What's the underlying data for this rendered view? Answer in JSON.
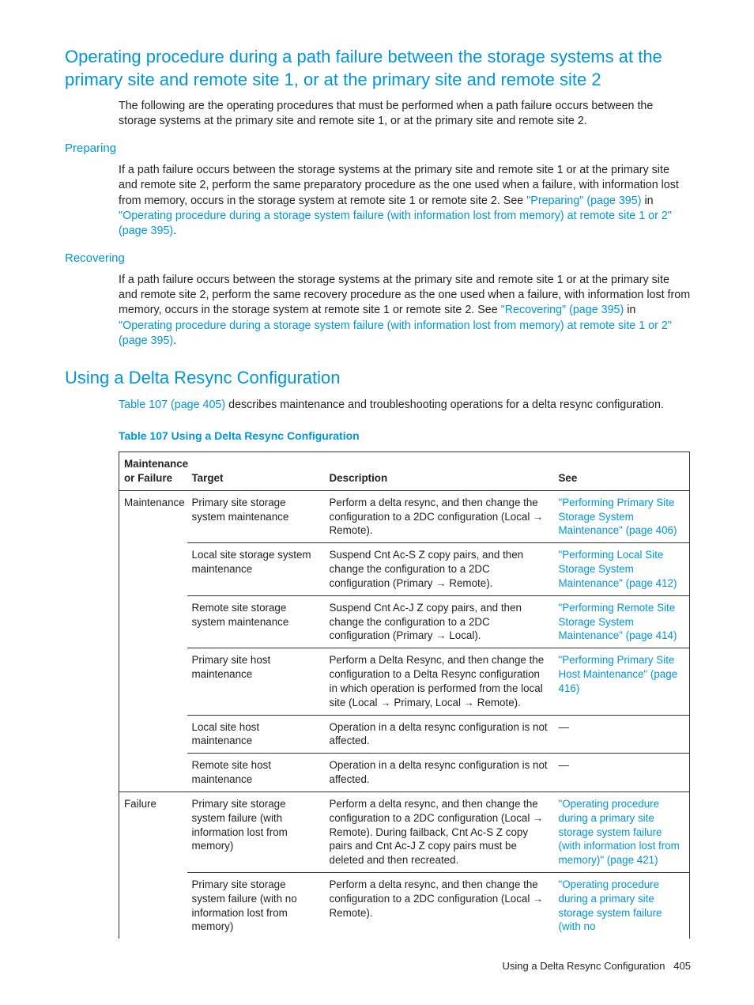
{
  "heading1": "Operating procedure during a path failure between the storage systems at the primary site and remote site 1, or at the primary site and remote site 2",
  "intro": "The following are the operating procedures that must be performed when a path failure occurs between the storage systems at the primary site and remote site 1, or at the primary site and remote site 2.",
  "preparing": {
    "title": "Preparing",
    "text_pre": "If a path failure occurs between the storage systems at the primary site and remote site 1 or at the primary site and remote site 2, perform the same preparatory procedure as the one used when a failure, with information lost from memory, occurs in the storage system at remote site 1 or remote site 2. See ",
    "link1": "\"Preparing\" (page 395)",
    "mid": " in ",
    "link2": "\"Operating procedure during a storage system failure (with information lost from memory) at remote site 1 or 2\" (page 395)",
    "after": "."
  },
  "recovering": {
    "title": "Recovering",
    "text_pre": "If a path failure occurs between the storage systems at the primary site and remote site 1 or at the primary site and remote site 2, perform the same recovery procedure as the one used when a failure, with information lost from memory, occurs in the storage system at remote site 1 or remote site 2. See ",
    "link1": "\"Recovering\" (page 395)",
    "mid": " in ",
    "link2": "\"Operating procedure during a storage system failure (with information lost from memory) at remote site 1 or 2\" (page 395)",
    "after": "."
  },
  "heading2": "Using a Delta Resync Configuration",
  "delta_intro_link": "Table 107 (page 405)",
  "delta_intro_post": " describes maintenance and troubleshooting operations for a delta resync configuration.",
  "table_caption": "Table 107 Using a Delta Resync Configuration",
  "columns": [
    "Maintenance or Failure",
    "Target",
    "Description",
    "See"
  ],
  "rows": [
    {
      "c0": "Maintenance",
      "c1": "Primary site storage system maintenance",
      "c2": "Perform a delta resync, and then change the configuration to a 2DC configuration (Local → Remote).",
      "c3": "\"Performing Primary Site Storage System Maintenance\" (page 406)",
      "link": true,
      "rs": 6
    },
    {
      "c0": "",
      "c1": "Local site storage system maintenance",
      "c2": "Suspend Cnt Ac-S Z copy pairs, and then change the configuration to a 2DC configuration (Primary → Remote).",
      "c3": "\"Performing Local Site Storage System Maintenance\" (page 412)",
      "link": true
    },
    {
      "c0": "",
      "c1": "Remote site storage system maintenance",
      "c2": "Suspend Cnt Ac-J Z copy pairs, and then change the configuration to a 2DC configuration (Primary → Local).",
      "c3": "\"Performing Remote Site Storage System Maintenance\" (page 414)",
      "link": true
    },
    {
      "c0": "",
      "c1": "Primary site host maintenance",
      "c2": "Perform a Delta Resync, and then change the configuration to a Delta Resync configuration in which operation is performed from the local site (Local → Primary, Local → Remote).",
      "c3": "\"Performing Primary Site Host Maintenance\" (page 416)",
      "link": true
    },
    {
      "c0": "",
      "c1": "Local site host maintenance",
      "c2": "Operation in a delta resync configuration is not affected.",
      "c3": "—",
      "link": false
    },
    {
      "c0": "",
      "c1": "Remote site host maintenance",
      "c2": "Operation in a delta resync configuration is not affected.",
      "c3": "—",
      "link": false
    },
    {
      "c0": "Failure",
      "c1": "Primary site storage system failure (with information lost from memory)",
      "c2": "Perform a delta resync, and then change the configuration to a 2DC configuration (Local → Remote). During failback, Cnt Ac-S Z copy pairs and Cnt Ac-J Z copy pairs must be deleted and then recreated.",
      "c3": "\"Operating procedure during a primary site storage system failure (with information lost from memory)\" (page 421)",
      "link": true,
      "rs": 2
    },
    {
      "c0": "",
      "c1": "Primary site storage system failure (with no information lost from memory)",
      "c2": "Perform a delta resync, and then change the configuration to a 2DC configuration (Local → Remote).",
      "c3": "\"Operating procedure during a primary site storage system failure (with no",
      "link": true,
      "nob": true
    }
  ],
  "footer_text": "Using a Delta Resync Configuration",
  "footer_page": "405"
}
